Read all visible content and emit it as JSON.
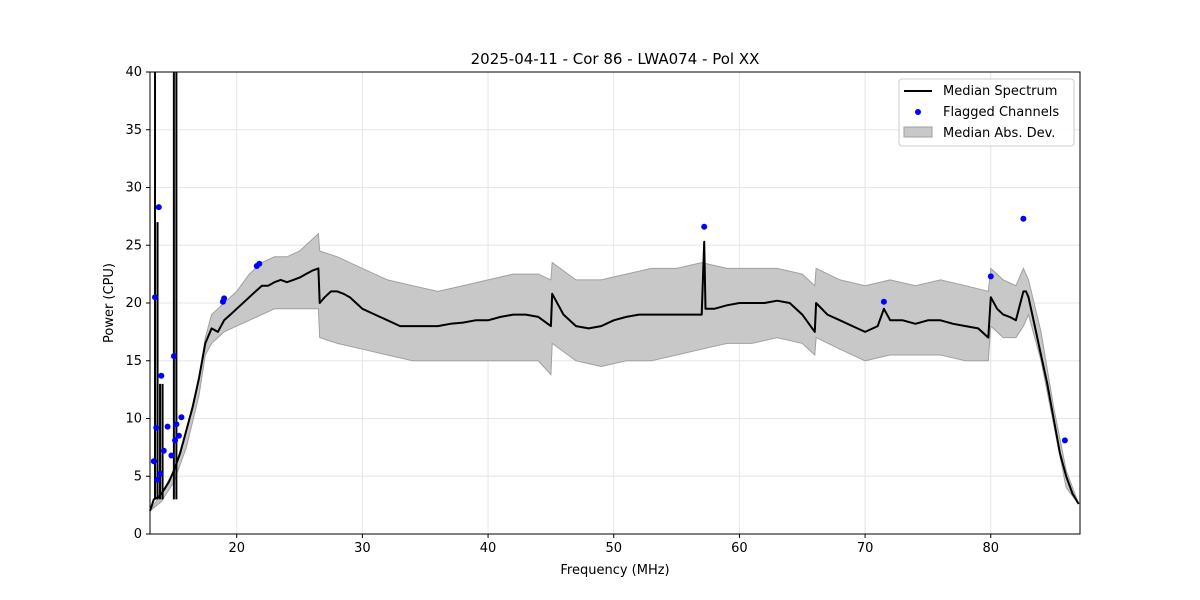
{
  "chart_data": {
    "type": "line",
    "title": "2025-04-11 - Cor 86 - LWA074 - Pol XX",
    "xlabel": "Frequency (MHz)",
    "ylabel": "Power (CPU)",
    "xlim": [
      13.1,
      87.1
    ],
    "ylim": [
      0,
      40
    ],
    "xticks": [
      20,
      30,
      40,
      50,
      60,
      70,
      80
    ],
    "yticks": [
      0,
      5,
      10,
      15,
      20,
      25,
      30,
      35,
      40
    ],
    "grid": true,
    "legend_position": "top-right",
    "legend": [
      "Median Spectrum",
      "Flagged Channels",
      "Median Abs. Dev."
    ],
    "colors": {
      "median": "#000000",
      "flagged": "#0000ff",
      "mad_fill": "#c8c8c8",
      "mad_edge": "#a0a0a0"
    },
    "series": [
      {
        "name": "Median Spectrum",
        "x": [
          13.1,
          13.4,
          13.8,
          14.2,
          14.6,
          15.0,
          15.5,
          16.0,
          16.5,
          17.0,
          17.5,
          18.0,
          18.5,
          19.0,
          19.5,
          20.0,
          20.5,
          21.0,
          21.5,
          22.0,
          22.5,
          23.0,
          23.5,
          24.0,
          24.5,
          25.0,
          25.5,
          26.0,
          26.5,
          26.6,
          27.0,
          27.5,
          28.0,
          28.5,
          29.0,
          29.5,
          30.0,
          31.0,
          32.0,
          33.0,
          34.0,
          35.0,
          36.0,
          37.0,
          38.0,
          39.0,
          40.0,
          41.0,
          42.0,
          43.0,
          44.0,
          45.0,
          45.1,
          46.0,
          47.0,
          48.0,
          49.0,
          50.0,
          51.0,
          52.0,
          53.0,
          54.0,
          55.0,
          56.0,
          57.0,
          57.2,
          57.3,
          58.0,
          59.0,
          60.0,
          61.0,
          62.0,
          63.0,
          64.0,
          65.0,
          66.0,
          66.1,
          67.0,
          68.0,
          69.0,
          70.0,
          71.0,
          71.5,
          72.0,
          73.0,
          74.0,
          75.0,
          76.0,
          77.0,
          78.0,
          79.0,
          79.8,
          80.0,
          80.5,
          81.0,
          81.5,
          82.0,
          82.6,
          82.8,
          83.0,
          83.5,
          84.0,
          84.5,
          85.0,
          85.5,
          86.0,
          86.5,
          87.0
        ],
        "y": [
          2.0,
          3.0,
          3.2,
          3.8,
          4.5,
          5.5,
          7.0,
          9.0,
          11.0,
          13.5,
          16.5,
          17.8,
          17.5,
          18.5,
          19.0,
          19.5,
          20.0,
          20.5,
          21.0,
          21.5,
          21.5,
          21.8,
          22.0,
          21.8,
          22.0,
          22.2,
          22.5,
          22.8,
          23.0,
          20.0,
          20.5,
          21.0,
          21.0,
          20.8,
          20.5,
          20.0,
          19.5,
          19.0,
          18.5,
          18.0,
          18.0,
          18.0,
          18.0,
          18.2,
          18.3,
          18.5,
          18.5,
          18.8,
          19.0,
          19.0,
          18.8,
          18.0,
          20.8,
          19.0,
          18.0,
          17.8,
          18.0,
          18.5,
          18.8,
          19.0,
          19.0,
          19.0,
          19.0,
          19.0,
          19.0,
          25.3,
          19.5,
          19.5,
          19.8,
          20.0,
          20.0,
          20.0,
          20.2,
          20.0,
          19.0,
          17.5,
          20.0,
          19.0,
          18.5,
          18.0,
          17.5,
          18.0,
          19.5,
          18.5,
          18.5,
          18.2,
          18.5,
          18.5,
          18.2,
          18.0,
          17.8,
          17.0,
          20.5,
          19.5,
          19.0,
          18.8,
          18.5,
          21.0,
          21.0,
          20.5,
          18.0,
          15.5,
          13.0,
          10.0,
          7.0,
          5.0,
          3.5,
          2.6
        ]
      },
      {
        "name": "Median Abs. Dev.",
        "x": [
          13.1,
          14.0,
          15.0,
          16.0,
          17.0,
          17.5,
          18.0,
          19.0,
          20.0,
          21.0,
          22.0,
          23.0,
          24.0,
          25.0,
          26.0,
          26.5,
          26.6,
          28.0,
          30.0,
          32.0,
          34.0,
          36.0,
          38.0,
          40.0,
          42.0,
          44.0,
          45.0,
          45.1,
          47.0,
          49.0,
          51.0,
          53.0,
          55.0,
          57.0,
          59.0,
          61.0,
          63.0,
          65.0,
          66.0,
          66.1,
          68.0,
          70.0,
          72.0,
          74.0,
          76.0,
          78.0,
          79.8,
          80.0,
          81.0,
          82.0,
          82.6,
          83.0,
          84.0,
          85.0,
          86.0,
          87.0
        ],
        "upper": [
          2.0,
          3.5,
          5.5,
          9.0,
          13.5,
          17.0,
          19.0,
          20.0,
          21.0,
          22.5,
          23.5,
          24.0,
          24.0,
          24.5,
          25.5,
          26.0,
          24.5,
          24.0,
          23.0,
          22.0,
          21.5,
          21.0,
          21.5,
          22.0,
          22.5,
          22.5,
          22.0,
          23.5,
          22.0,
          22.0,
          22.5,
          23.0,
          23.0,
          23.5,
          23.0,
          23.0,
          23.0,
          22.5,
          21.5,
          23.0,
          22.0,
          21.5,
          22.0,
          21.5,
          22.0,
          21.5,
          21.0,
          23.0,
          22.0,
          21.5,
          23.0,
          22.0,
          17.5,
          11.0,
          5.5,
          2.6
        ],
        "lower": [
          2.0,
          2.8,
          4.5,
          7.5,
          12.0,
          15.5,
          16.5,
          17.5,
          18.0,
          18.5,
          19.0,
          19.5,
          19.5,
          19.5,
          19.5,
          19.5,
          17.0,
          16.5,
          16.0,
          15.5,
          15.0,
          15.0,
          15.0,
          15.0,
          15.0,
          15.0,
          13.8,
          16.5,
          15.0,
          14.5,
          15.0,
          15.0,
          15.5,
          16.0,
          16.5,
          16.5,
          17.0,
          16.5,
          15.5,
          17.0,
          16.0,
          15.0,
          15.5,
          15.5,
          15.5,
          15.0,
          15.0,
          18.0,
          17.0,
          17.0,
          18.0,
          19.0,
          15.0,
          9.5,
          4.0,
          2.6
        ]
      },
      {
        "name": "Flagged Channels",
        "x": [
          13.4,
          13.5,
          13.6,
          13.7,
          13.8,
          13.9,
          14.0,
          14.2,
          14.5,
          14.8,
          15.0,
          15.1,
          15.2,
          15.4,
          15.6,
          18.9,
          19.0,
          21.6,
          21.8,
          57.2,
          71.5,
          80.0,
          82.6,
          85.9
        ],
        "y": [
          6.3,
          20.5,
          9.2,
          4.7,
          28.3,
          5.2,
          13.7,
          7.2,
          9.3,
          6.8,
          15.4,
          8.1,
          9.5,
          8.5,
          10.1,
          20.1,
          20.4,
          23.2,
          23.4,
          26.6,
          20.1,
          22.3,
          27.3,
          8.1
        ]
      }
    ],
    "spikes": [
      {
        "x": 13.5,
        "y": 40
      },
      {
        "x": 13.7,
        "y": 27
      },
      {
        "x": 13.9,
        "y": 13
      },
      {
        "x": 14.1,
        "y": 13
      },
      {
        "x": 15.0,
        "y": 40
      },
      {
        "x": 15.2,
        "y": 40
      }
    ]
  }
}
